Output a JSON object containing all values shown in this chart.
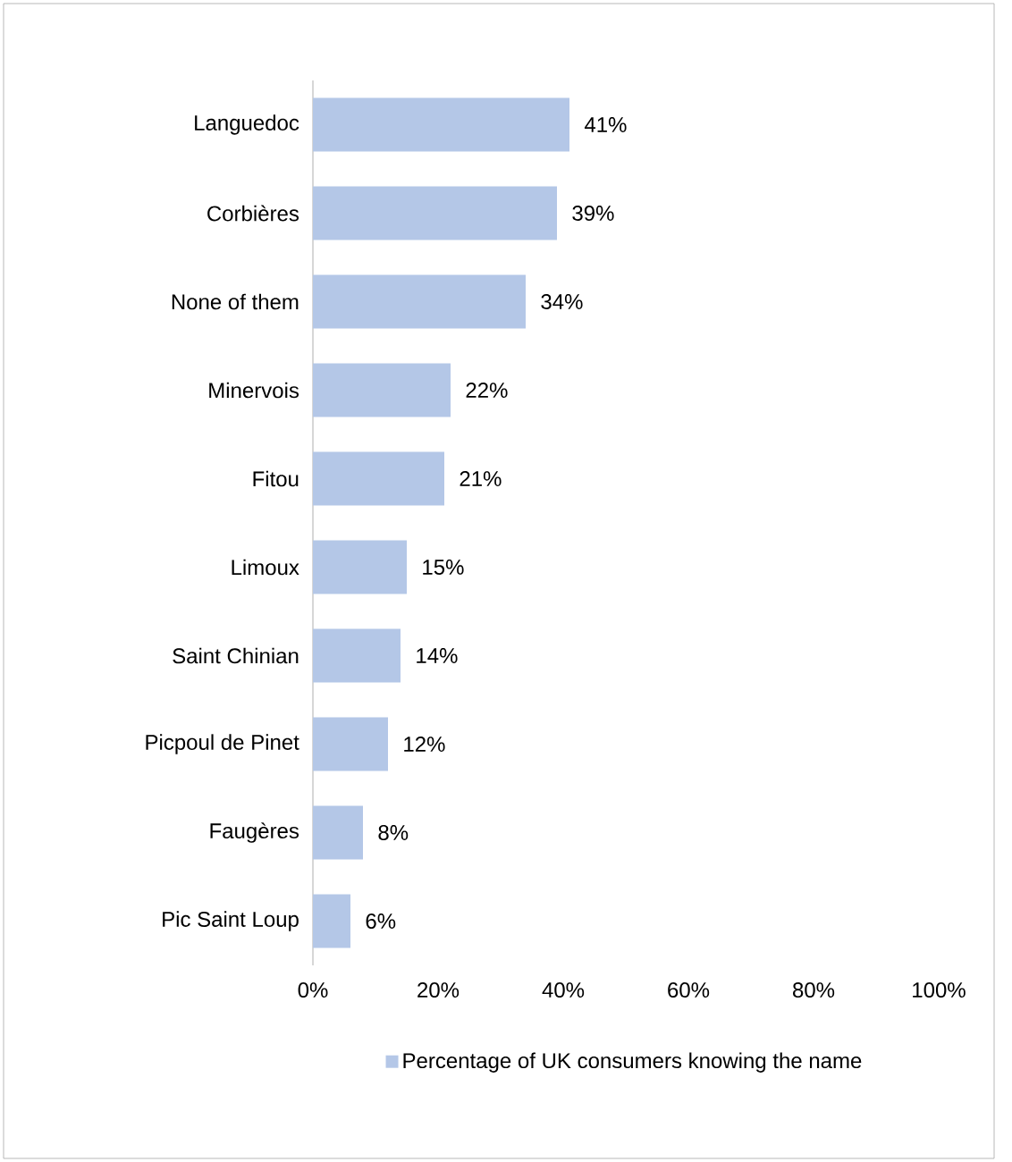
{
  "chart_data": {
    "type": "bar",
    "orientation": "horizontal",
    "categories": [
      "Languedoc",
      "Corbières",
      "None of them",
      "Minervois",
      "Fitou",
      "Limoux",
      "Saint Chinian",
      "Picpoul de Pinet",
      "Faugères",
      "Pic Saint Loup"
    ],
    "series": [
      {
        "name": "Percentage of UK consumers knowing the name",
        "color": "#b4c7e7",
        "values": [
          41,
          39,
          34,
          22,
          21,
          15,
          14,
          12,
          8,
          6
        ],
        "value_labels": [
          "41%",
          "39%",
          "34%",
          "22%",
          "21%",
          "15%",
          "14%",
          "12%",
          "8%",
          "6%"
        ]
      }
    ],
    "xlim": [
      0,
      100
    ],
    "xticks": [
      {
        "value": 0,
        "label": "0%"
      },
      {
        "value": 20,
        "label": "20%"
      },
      {
        "value": 40,
        "label": "40%"
      },
      {
        "value": 60,
        "label": "60%"
      },
      {
        "value": 80,
        "label": "80%"
      },
      {
        "value": 100,
        "label": "100%"
      }
    ],
    "grid": false,
    "legend": "bottom"
  }
}
